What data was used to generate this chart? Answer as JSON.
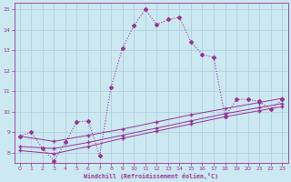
{
  "xlabel": "Windchill (Refroidissement éolien,°C)",
  "background_color": "#cce8f0",
  "grid_color": "#aaccdd",
  "line_color": "#993399",
  "xlim": [
    -0.5,
    23.5
  ],
  "ylim": [
    7.5,
    15.3
  ],
  "xticks": [
    0,
    1,
    2,
    3,
    4,
    5,
    6,
    7,
    8,
    9,
    10,
    11,
    12,
    13,
    14,
    15,
    16,
    17,
    18,
    19,
    20,
    21,
    22,
    23
  ],
  "yticks": [
    8,
    9,
    10,
    11,
    12,
    13,
    14,
    15
  ],
  "curve1_x": [
    0,
    1,
    2,
    3,
    4,
    5,
    6,
    7,
    8,
    9,
    10,
    11,
    12,
    13,
    14,
    15,
    16,
    17,
    18,
    19,
    20,
    21,
    22,
    23
  ],
  "curve1_y": [
    8.8,
    9.0,
    8.2,
    7.6,
    8.5,
    9.5,
    9.55,
    7.85,
    11.2,
    13.1,
    14.2,
    15.0,
    14.25,
    14.5,
    14.6,
    13.4,
    12.8,
    12.65,
    9.75,
    10.6,
    10.6,
    10.5,
    10.1,
    10.6
  ],
  "line_a_x": [
    0,
    3,
    6,
    9,
    12,
    15,
    18,
    21,
    23
  ],
  "line_a_y": [
    8.8,
    8.55,
    8.85,
    9.15,
    9.5,
    9.85,
    10.15,
    10.45,
    10.65
  ],
  "line_b_x": [
    0,
    3,
    6,
    9,
    12,
    15,
    18,
    21,
    23
  ],
  "line_b_y": [
    8.3,
    8.2,
    8.5,
    8.85,
    9.2,
    9.55,
    9.9,
    10.2,
    10.4
  ],
  "line_c_x": [
    0,
    3,
    6,
    9,
    12,
    15,
    18,
    21,
    23
  ],
  "line_c_y": [
    8.1,
    7.95,
    8.3,
    8.7,
    9.05,
    9.4,
    9.75,
    10.05,
    10.25
  ]
}
